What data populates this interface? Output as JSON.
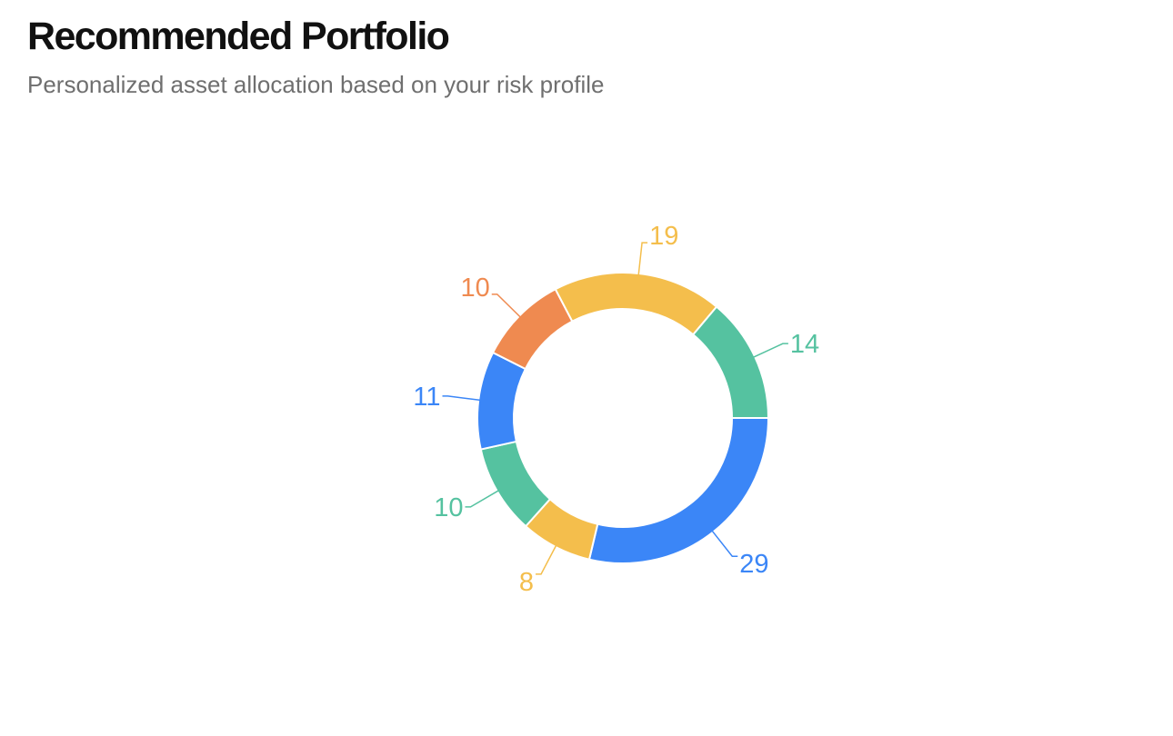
{
  "header": {
    "title": "Recommended Portfolio",
    "subtitle": "Personalized asset allocation based on your risk profile"
  },
  "chart_data": {
    "type": "pie",
    "style": "donut",
    "legend": "none",
    "values": [
      29,
      8,
      10,
      11,
      10,
      19,
      14
    ],
    "labels": [
      "29",
      "8",
      "10",
      "11",
      "10",
      "19",
      "14"
    ],
    "colors": [
      "#3B86F7",
      "#F4BE4C",
      "#55C2A0",
      "#3B86F7",
      "#EF8A50",
      "#F4BE4C",
      "#55C2A0"
    ]
  }
}
